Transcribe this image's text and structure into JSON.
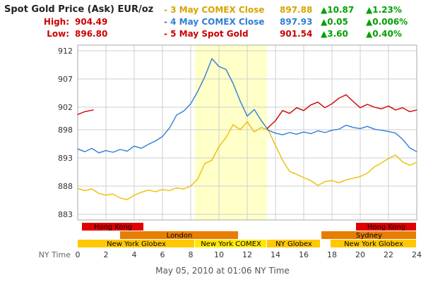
{
  "header": {
    "title": "Spot Gold Price (Ask) EUR/oz",
    "high_label": "High:",
    "high_value": "904.49",
    "low_label": "Low:",
    "low_value": "896.80",
    "high_low_color": "#CC0000",
    "change_color": "#00A000",
    "legend": [
      {
        "label": "- 3 May COMEX Close",
        "value": "897.88",
        "change": "▲10.87",
        "change_pct": "▲1.23%",
        "color": "#D9A300"
      },
      {
        "label": "- 4 May COMEX Close",
        "value": "897.93",
        "change": "▲0.05",
        "change_pct": "▲0.006%",
        "color": "#2F7ED8"
      },
      {
        "label": "- 5 May Spot Gold",
        "value": "901.54",
        "change": "▲3.60",
        "change_pct": "▲0.40%",
        "color": "#CC0000"
      }
    ]
  },
  "footer": {
    "caption": "May 05, 2010 at 01:06 NY Time"
  },
  "chart_data": {
    "type": "line",
    "title": "Spot Gold Price (Ask) EUR/oz",
    "x_axis_label": "NY Time",
    "xlim": [
      0,
      24
    ],
    "ylim": [
      882,
      913
    ],
    "x_ticks": [
      0,
      2,
      4,
      6,
      8,
      10,
      12,
      14,
      16,
      18,
      20,
      22,
      24
    ],
    "y_ticks": [
      912,
      907,
      902,
      898,
      893,
      888,
      883
    ],
    "grid": true,
    "grid_color": "#CFCFCF",
    "border_color": "#AAAAAA",
    "highlight_band": {
      "from": 8.3,
      "to": 13.4,
      "color": "#FFFFC8",
      "note": "New York COMEX session"
    },
    "series": [
      {
        "name": "3 May COMEX Close",
        "color": "#EDBE00",
        "segments": [
          {
            "x": [
              0,
              0.5,
              1,
              1.5,
              2,
              2.5,
              3,
              3.5,
              4,
              4.5,
              5,
              5.5,
              6,
              6.5,
              7,
              7.5,
              8,
              8.5,
              9,
              9.5,
              10,
              10.5,
              11,
              11.5,
              12,
              12.5,
              13,
              13.5,
              14,
              14.5,
              15,
              15.5,
              16,
              16.5,
              17,
              17.5,
              18,
              18.5,
              19,
              19.5,
              20,
              20.5,
              21,
              21.5,
              22,
              22.5,
              23,
              23.5,
              24
            ],
            "y": [
              887.6,
              887.2,
              887.5,
              886.7,
              886.4,
              886.6,
              885.9,
              885.6,
              886.4,
              886.9,
              887.3,
              887.0,
              887.4,
              887.2,
              887.7,
              887.5,
              888.0,
              889.3,
              892.0,
              892.6,
              895.0,
              896.6,
              898.9,
              898.0,
              899.4,
              897.6,
              898.4,
              897.9,
              895.2,
              892.6,
              890.6,
              890.1,
              889.5,
              889.0,
              888.1,
              888.8,
              889.0,
              888.6,
              889.1,
              889.4,
              889.7,
              890.3,
              891.4,
              892.1,
              892.9,
              893.5,
              892.3,
              891.7,
              892.2
            ]
          }
        ]
      },
      {
        "name": "4 May COMEX Close",
        "color": "#2F7ED8",
        "segments": [
          {
            "x": [
              0,
              0.5,
              1,
              1.5,
              2,
              2.5,
              3,
              3.5,
              4,
              4.5,
              5,
              5.5,
              6,
              6.5,
              7,
              7.5,
              8,
              8.5,
              9,
              9.5,
              10,
              10.5,
              11,
              11.5,
              12,
              12.5,
              13,
              13.5,
              14,
              14.5,
              15,
              15.5,
              16,
              16.5,
              17,
              17.5,
              18,
              18.5,
              19,
              19.5,
              20,
              20.5,
              21,
              21.5,
              22,
              22.5,
              23,
              23.5,
              24
            ],
            "y": [
              894.6,
              894.1,
              894.7,
              893.9,
              894.3,
              894.0,
              894.5,
              894.2,
              895.1,
              894.7,
              895.4,
              896.0,
              896.8,
              898.3,
              900.6,
              901.3,
              902.6,
              904.8,
              907.4,
              910.6,
              909.2,
              908.7,
              906.2,
              903.1,
              900.4,
              901.6,
              899.6,
              897.9,
              897.4,
              897.1,
              897.5,
              897.2,
              897.6,
              897.3,
              897.8,
              897.5,
              897.9,
              898.1,
              898.8,
              898.4,
              898.2,
              898.6,
              898.1,
              897.9,
              897.7,
              897.4,
              896.3,
              894.8,
              894.1
            ]
          }
        ]
      },
      {
        "name": "5 May Spot Gold",
        "color": "#CC0000",
        "segments": [
          {
            "x": [
              0,
              0.5,
              1.1
            ],
            "y": [
              900.7,
              901.2,
              901.5
            ]
          },
          {
            "x": [
              13.4,
              14,
              14.5,
              15,
              15.5,
              16,
              16.5,
              17,
              17.5,
              18,
              18.5,
              19,
              19.5,
              20,
              20.5,
              21,
              21.5,
              22,
              22.5,
              23,
              23.5,
              24
            ],
            "y": [
              898.2,
              899.6,
              901.4,
              900.9,
              901.9,
              901.4,
              902.4,
              902.9,
              901.9,
              902.6,
              903.6,
              904.2,
              903.0,
              901.9,
              902.5,
              902.0,
              901.7,
              902.2,
              901.5,
              901.9,
              901.2,
              901.5
            ]
          }
        ]
      }
    ],
    "sessions": [
      {
        "label": "Hong Kong",
        "row": 0,
        "start": 0.3,
        "end": 4.7,
        "color": "#E00000"
      },
      {
        "label": "Hong Kong",
        "row": 0,
        "start": 19.7,
        "end": 24,
        "color": "#E00000"
      },
      {
        "label": "London",
        "row": 1,
        "start": 3.0,
        "end": 11.4,
        "color": "#E87E00"
      },
      {
        "label": "Sydney",
        "row": 1,
        "start": 17.25,
        "end": 24,
        "color": "#E87E00"
      },
      {
        "label": "New York Globex",
        "row": 2,
        "start": 0,
        "end": 8.3,
        "color": "#FFC800"
      },
      {
        "label": "New York COMEX",
        "row": 2,
        "start": 8.3,
        "end": 13.4,
        "color": "#FFE800"
      },
      {
        "label": "NY Globex",
        "row": 2,
        "start": 13.4,
        "end": 17.2,
        "color": "#FFC800"
      },
      {
        "label": "New York Globex",
        "row": 2,
        "start": 17.9,
        "end": 24,
        "color": "#FFC800"
      }
    ]
  }
}
